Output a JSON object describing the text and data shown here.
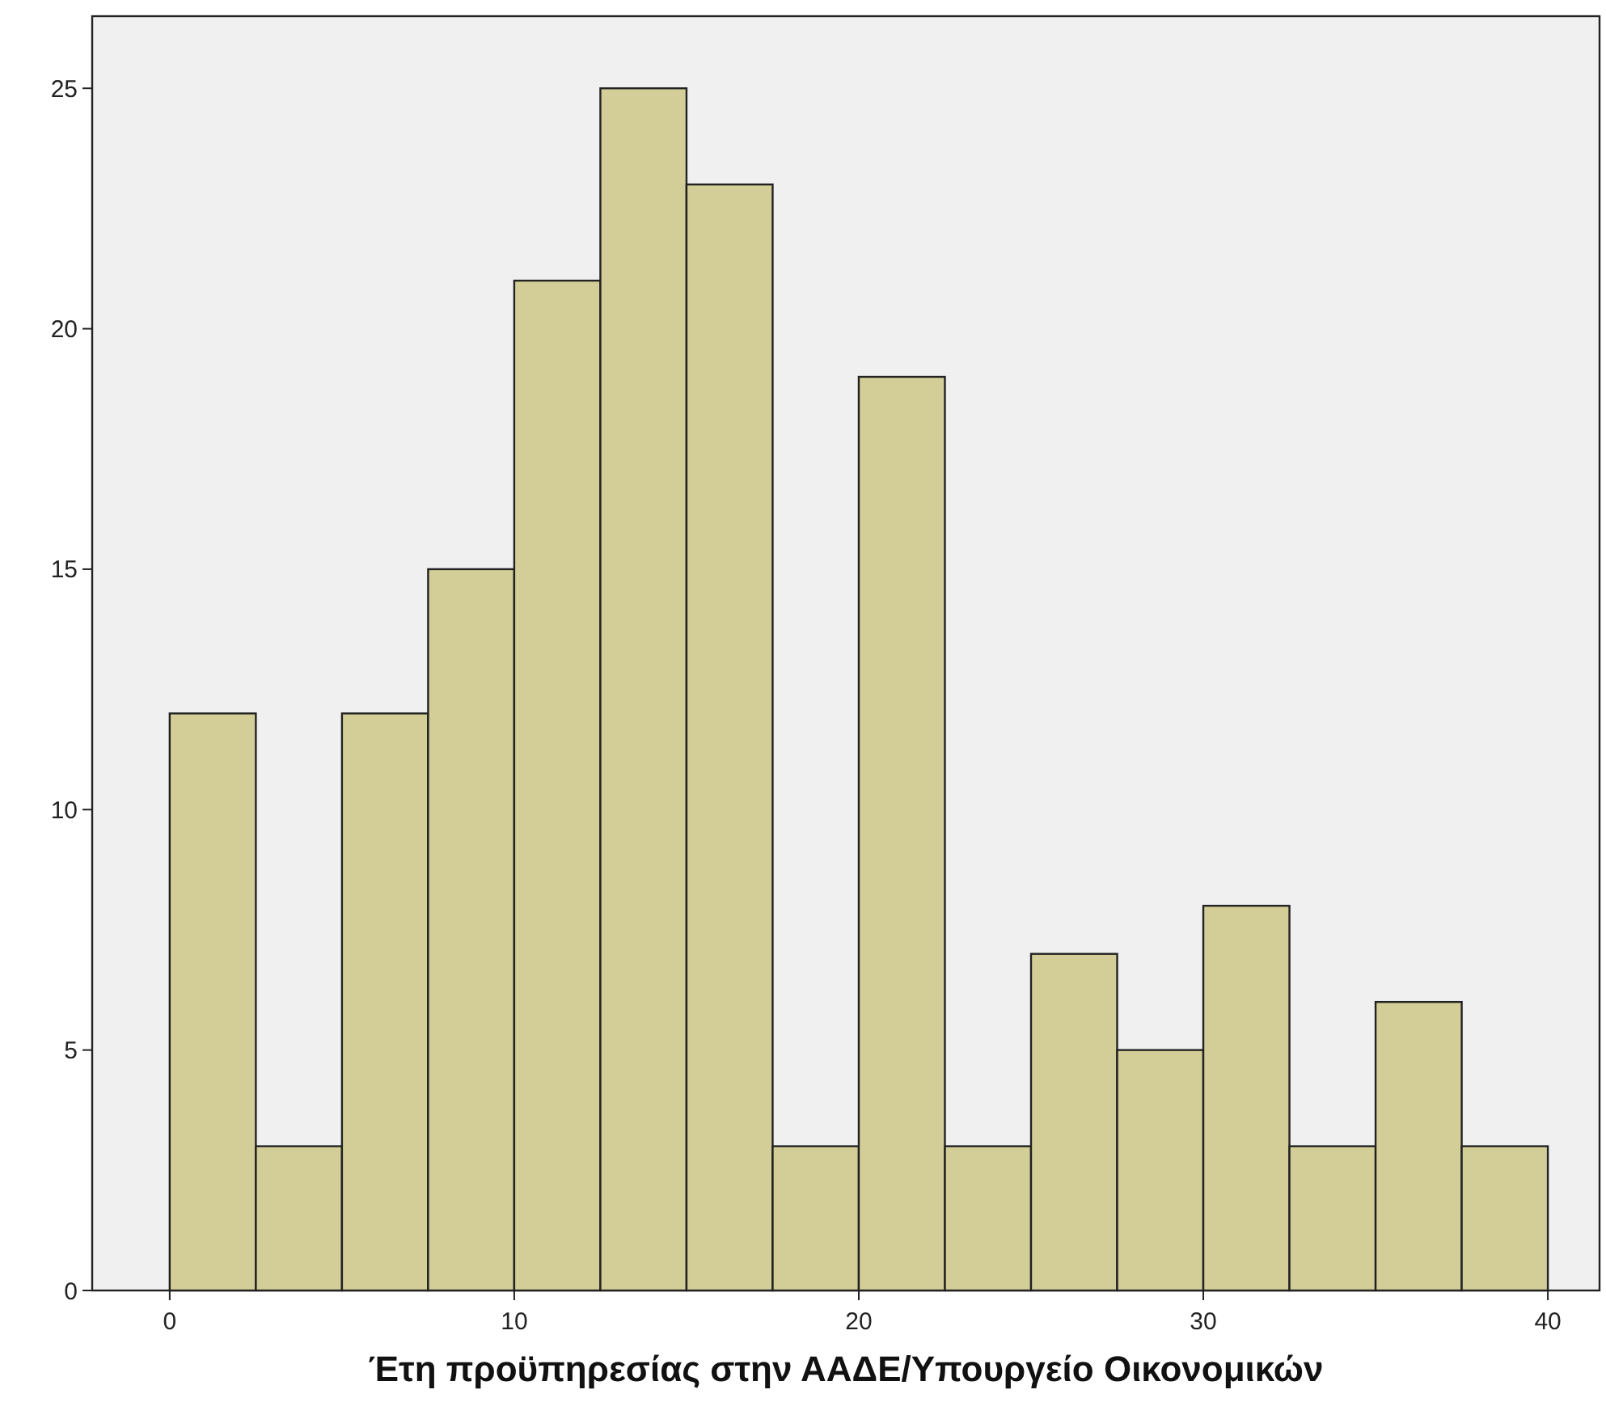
{
  "chart_data": {
    "type": "histogram",
    "xlabel": "Έτη προϋπηρεσίας στην ΑΑΔΕ/Υπουργείο Οικονομικών",
    "bins": [
      0,
      2.5,
      5,
      7.5,
      10,
      12.5,
      15,
      17.5,
      20,
      22.5,
      25,
      27.5,
      30,
      32.5,
      35,
      37.5,
      40
    ],
    "values": [
      12,
      3,
      12,
      15,
      21,
      25,
      23,
      3,
      19,
      3,
      7,
      5,
      8,
      3,
      6,
      3
    ],
    "color": "#d3ce97",
    "xlim": [
      -2.25,
      41.5
    ],
    "xticks": [
      0,
      10,
      20,
      30,
      40
    ],
    "ylim": [
      0,
      26.5
    ],
    "yticks": [
      0,
      5,
      10,
      15,
      20,
      25
    ],
    "grid": false
  }
}
